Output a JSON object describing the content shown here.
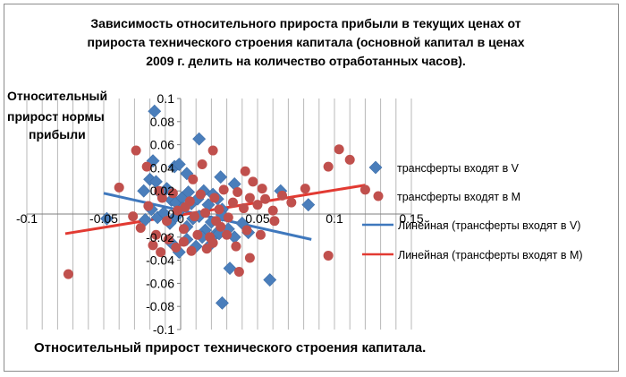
{
  "chart_data": {
    "type": "scatter",
    "title": [
      "Зависимость относительного прироста прибыли в текущих ценах от",
      "прироста технического строения капитала (основной капитал в ценах",
      "2009 г. делить на количество отработанных часов)."
    ],
    "xlabel": "Относительный прирост технического строения капитала.",
    "ylabel": [
      "Относительный",
      "прирост нормы",
      "прибыли"
    ],
    "xlim": [
      -0.1,
      0.15
    ],
    "ylim": [
      -0.1,
      0.1
    ],
    "x_ticks": [
      "-0.1",
      "-0.05",
      "0",
      "0.05",
      "0.1",
      "0.15"
    ],
    "y_ticks": [
      "-0.1",
      "-0.08",
      "-0.06",
      "-0.04",
      "-0.02",
      "0",
      "0.02",
      "0.04",
      "0.06",
      "0.08",
      "0.1"
    ],
    "grid": "vertical",
    "legend_position": "right",
    "series": [
      {
        "name": "трансферты входят в V",
        "marker": "diamond",
        "color": "#4a7ebb",
        "points": [
          [
            -0.017,
            0.089
          ],
          [
            0.012,
            0.065
          ],
          [
            -0.018,
            0.046
          ],
          [
            -0.004,
            0.041
          ],
          [
            -0.001,
            0.043
          ],
          [
            0.004,
            0.035
          ],
          [
            0.026,
            0.032
          ],
          [
            0.035,
            0.026
          ],
          [
            0.065,
            0.02
          ],
          [
            0.083,
            0.008
          ],
          [
            -0.048,
            -0.004
          ],
          [
            -0.024,
            0.02
          ],
          [
            -0.02,
            0.03
          ],
          [
            -0.016,
            0.028
          ],
          [
            -0.013,
            0.018
          ],
          [
            -0.009,
            0.022
          ],
          [
            -0.006,
            0.012
          ],
          [
            -0.003,
            0.01
          ],
          [
            0.001,
            0.014
          ],
          [
            0.005,
            0.019
          ],
          [
            0.007,
            0.009
          ],
          [
            0.011,
            0.013
          ],
          [
            0.015,
            0.02
          ],
          [
            0.018,
            0.008
          ],
          [
            0.021,
            0.017
          ],
          [
            0.024,
            0.013
          ],
          [
            0.027,
            0.004
          ],
          [
            -0.023,
            -0.005
          ],
          [
            -0.019,
            0.004
          ],
          [
            -0.015,
            -0.003
          ],
          [
            -0.011,
            0.001
          ],
          [
            -0.007,
            -0.008
          ],
          [
            -0.003,
            -0.002
          ],
          [
            0.001,
            0.005
          ],
          [
            0.004,
            -0.011
          ],
          [
            0.008,
            -0.004
          ],
          [
            0.012,
            -0.002
          ],
          [
            0.016,
            -0.014
          ],
          [
            0.02,
            -0.007
          ],
          [
            0.023,
            -0.017
          ],
          [
            0.027,
            -0.001
          ],
          [
            0.031,
            -0.013
          ],
          [
            0.035,
            -0.02
          ],
          [
            0.04,
            -0.008
          ],
          [
            0.044,
            -0.016
          ],
          [
            -0.006,
            -0.025
          ],
          [
            -0.001,
            -0.033
          ],
          [
            0.004,
            -0.022
          ],
          [
            0.01,
            -0.028
          ],
          [
            0.014,
            -0.02
          ],
          [
            0.019,
            -0.027
          ],
          [
            0.025,
            -0.017
          ],
          [
            0.032,
            -0.047
          ],
          [
            0.058,
            -0.057
          ],
          [
            0.027,
            -0.077
          ]
        ]
      },
      {
        "name": "трансферты входят в М",
        "marker": "circle",
        "color": "#c0504d",
        "points": [
          [
            -0.073,
            -0.052
          ],
          [
            -0.04,
            0.023
          ],
          [
            -0.029,
            0.055
          ],
          [
            -0.022,
            0.041
          ],
          [
            0.008,
            0.03
          ],
          [
            0.014,
            0.043
          ],
          [
            0.021,
            0.055
          ],
          [
            0.042,
            0.037
          ],
          [
            0.047,
            0.028
          ],
          [
            0.053,
            0.022
          ],
          [
            0.081,
            0.022
          ],
          [
            0.096,
            0.041
          ],
          [
            0.103,
            0.056
          ],
          [
            0.11,
            0.047
          ],
          [
            0.12,
            0.021
          ],
          [
            0.096,
            -0.036
          ],
          [
            -0.031,
            -0.002
          ],
          [
            -0.026,
            -0.012
          ],
          [
            -0.021,
            0.007
          ],
          [
            -0.016,
            -0.018
          ],
          [
            -0.012,
            0.014
          ],
          [
            -0.009,
            -0.006
          ],
          [
            -0.005,
            0.018
          ],
          [
            -0.002,
            0.003
          ],
          [
            0.002,
            -0.013
          ],
          [
            0.006,
            0.011
          ],
          [
            0.009,
            -0.002
          ],
          [
            0.013,
            0.017
          ],
          [
            0.016,
            0.001
          ],
          [
            0.019,
            -0.02
          ],
          [
            0.022,
            0.014
          ],
          [
            0.025,
            0.004
          ],
          [
            0.028,
            0.021
          ],
          [
            0.031,
            -0.003
          ],
          [
            0.034,
            0.01
          ],
          [
            0.037,
            0.019
          ],
          [
            0.041,
            0.005
          ],
          [
            0.045,
            0.014
          ],
          [
            0.05,
            0.008
          ],
          [
            0.055,
            0.013
          ],
          [
            0.06,
            0.003
          ],
          [
            0.066,
            0.016
          ],
          [
            -0.018,
            -0.027
          ],
          [
            -0.013,
            -0.033
          ],
          [
            -0.008,
            -0.022
          ],
          [
            -0.003,
            -0.029
          ],
          [
            0.002,
            -0.024
          ],
          [
            0.007,
            -0.032
          ],
          [
            0.011,
            -0.018
          ],
          [
            0.017,
            -0.03
          ],
          [
            0.021,
            -0.025
          ],
          [
            0.026,
            -0.011
          ],
          [
            0.03,
            -0.018
          ],
          [
            0.036,
            -0.028
          ],
          [
            0.038,
            -0.05
          ],
          [
            0.045,
            -0.038
          ],
          [
            0.052,
            -0.018
          ],
          [
            0.061,
            -0.006
          ],
          [
            0.072,
            0.01
          ],
          [
            -0.014,
            0.02
          ],
          [
            0.003,
            0.006
          ],
          [
            0.023,
            -0.006
          ],
          [
            0.043,
            -0.014
          ]
        ]
      }
    ],
    "trendlines": [
      {
        "name": "Линейная (трансферты входят в V)",
        "color": "#3f78bd",
        "x": [
          -0.05,
          0.085
        ],
        "y": [
          0.018,
          -0.022
        ]
      },
      {
        "name": "Линейная (трансферты входят в М)",
        "color": "#e23a32",
        "x": [
          -0.075,
          0.12
        ],
        "y": [
          -0.017,
          0.025
        ]
      }
    ]
  }
}
